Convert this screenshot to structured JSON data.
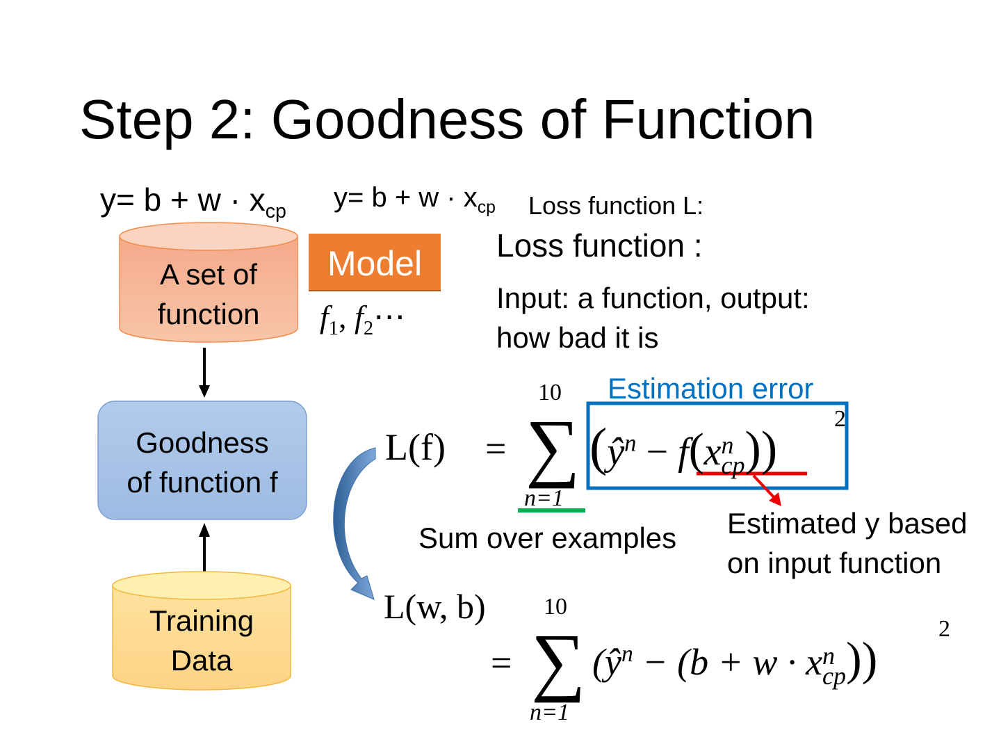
{
  "title": "Step 2: Goodness of Function",
  "model_formula": {
    "lhs": "y",
    "rest": "= b + w · x",
    "sub": "cp"
  },
  "cylinder_top": {
    "line1": "A set of",
    "line2": "function"
  },
  "model_label": "Model",
  "functions": {
    "f1": "f",
    "s1": "1",
    "f2": "f",
    "s2": "2",
    "dots": "⋯"
  },
  "goodness_box": {
    "line1": "Goodness",
    "line2": "of function f"
  },
  "training_data": {
    "line1": "Training",
    "line2": "Data"
  },
  "loss_title_small": "Loss function L:",
  "loss_title_large": "Loss function :",
  "loss_desc": {
    "line1": "Input: a function, output:",
    "line2": "how bad it is"
  },
  "estimation_error": "Estimation error",
  "formula1": {
    "lhs": "L(f)",
    "eq": "=",
    "upper": "10",
    "lower": "n=1",
    "sigma": "∑",
    "body_open": "(",
    "yhat": "ŷ",
    "n": "n",
    "minus": "−",
    "f": "f",
    "x": "x",
    "xsup": "n",
    "xsub": "cp",
    "close": "))",
    "pow": "2"
  },
  "sum_over_examples": "Sum over examples",
  "estimated_y": {
    "line1": "Estimated y based",
    "line2": "on input function"
  },
  "formula2": {
    "lhs": "L(w, b)",
    "eq": "=",
    "upper": "10",
    "lower": "n=1",
    "sigma": "∑",
    "body": "(ŷ",
    "n": "n",
    "mid": " − (b + w · x",
    "xsup": "n",
    "xsub": "cp",
    "close": "))",
    "pow": "2"
  },
  "colors": {
    "model_orange": "#ed7d31",
    "cylinder_top": "#f4b183",
    "goodness_blue": "#a9c4e8",
    "training_yellow": "#ffd98a",
    "box_blue": "#0070c0",
    "underline_red": "#ee0000",
    "underline_green": "#00b050"
  }
}
